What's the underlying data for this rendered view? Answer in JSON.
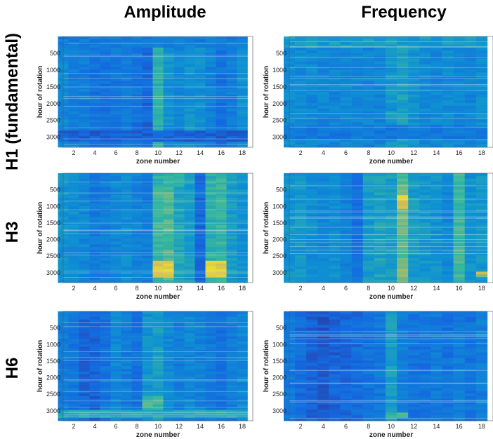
{
  "column_titles": [
    "Amplitude",
    "Frequency"
  ],
  "row_titles": [
    "H1 (fundamental)",
    "H3",
    "H6"
  ],
  "chart_data": [
    {
      "type": "heatmap",
      "id": "h1-amplitude",
      "row": "H1 (fundamental)",
      "column": "Amplitude",
      "xlabel": "zone number",
      "ylabel": "hour of rotation",
      "xlim": [
        1,
        19
      ],
      "ylim": [
        0,
        3300
      ],
      "y_reversed": true,
      "xticks": [
        2,
        4,
        6,
        8,
        10,
        12,
        14,
        16,
        18
      ],
      "yticks": [
        500,
        1000,
        1500,
        2000,
        2500,
        3000
      ],
      "zones": [
        1,
        2,
        3,
        4,
        5,
        6,
        7,
        8,
        9,
        10,
        11,
        12,
        13,
        14,
        15,
        16,
        17,
        18
      ],
      "zone_levels": [
        0.35,
        0.32,
        0.3,
        0.25,
        0.24,
        0.27,
        0.28,
        0.25,
        0.2,
        0.55,
        0.4,
        0.35,
        0.4,
        0.38,
        0.32,
        0.25,
        0.3,
        0.4
      ],
      "bands": [
        {
          "from": 0,
          "to": 300,
          "level": 0.3
        },
        {
          "from": 2800,
          "to": 3100,
          "level": 0.18
        }
      ]
    },
    {
      "type": "heatmap",
      "id": "h1-frequency",
      "row": "H1 (fundamental)",
      "column": "Frequency",
      "xlabel": "zone number",
      "ylabel": "hour of rotation",
      "xlim": [
        1,
        19
      ],
      "ylim": [
        0,
        3300
      ],
      "y_reversed": true,
      "xticks": [
        2,
        4,
        6,
        8,
        10,
        12,
        14,
        16,
        18
      ],
      "yticks": [
        500,
        1000,
        1500,
        2000,
        2500,
        3000
      ],
      "zones": [
        1,
        2,
        3,
        4,
        5,
        6,
        7,
        8,
        9,
        10,
        11,
        12,
        13,
        14,
        15,
        16,
        17,
        18
      ],
      "zone_levels": [
        0.38,
        0.36,
        0.35,
        0.34,
        0.34,
        0.35,
        0.35,
        0.34,
        0.34,
        0.42,
        0.48,
        0.4,
        0.36,
        0.35,
        0.36,
        0.35,
        0.34,
        0.38
      ],
      "bands": [
        {
          "from": 0,
          "to": 300,
          "level": 0.45
        },
        {
          "from": 2600,
          "to": 3000,
          "level": 0.28
        }
      ]
    },
    {
      "type": "heatmap",
      "id": "h3-amplitude",
      "row": "H3",
      "column": "Amplitude",
      "xlabel": "zone number",
      "ylabel": "hour of rotation",
      "xlim": [
        1,
        19
      ],
      "ylim": [
        0,
        3300
      ],
      "y_reversed": true,
      "xticks": [
        2,
        4,
        6,
        8,
        10,
        12,
        14,
        16,
        18
      ],
      "yticks": [
        500,
        1000,
        1500,
        2000,
        2500,
        3000
      ],
      "zones": [
        1,
        2,
        3,
        4,
        5,
        6,
        7,
        8,
        9,
        10,
        11,
        12,
        13,
        14,
        15,
        16,
        17,
        18
      ],
      "zone_levels": [
        0.4,
        0.38,
        0.35,
        0.28,
        0.3,
        0.35,
        0.38,
        0.32,
        0.3,
        0.6,
        0.62,
        0.5,
        0.45,
        0.22,
        0.55,
        0.58,
        0.45,
        0.4
      ],
      "bands": [
        {
          "from": 0,
          "to": 400,
          "level": 0.55,
          "zones": [
            10,
            11,
            12
          ]
        },
        {
          "from": 2600,
          "to": 3100,
          "level": 0.85,
          "zones": [
            10,
            11,
            15,
            16
          ]
        }
      ]
    },
    {
      "type": "heatmap",
      "id": "h3-frequency",
      "row": "H3",
      "column": "Frequency",
      "xlabel": "zone number",
      "ylabel": "hour of rotation",
      "xlim": [
        1,
        19
      ],
      "ylim": [
        0,
        3300
      ],
      "y_reversed": true,
      "xticks": [
        2,
        4,
        6,
        8,
        10,
        12,
        14,
        16,
        18
      ],
      "yticks": [
        500,
        1000,
        1500,
        2000,
        2500,
        3000
      ],
      "zones": [
        1,
        2,
        3,
        4,
        5,
        6,
        7,
        8,
        9,
        10,
        11,
        12,
        13,
        14,
        15,
        16,
        17,
        18
      ],
      "zone_levels": [
        0.4,
        0.42,
        0.38,
        0.35,
        0.38,
        0.32,
        0.25,
        0.45,
        0.48,
        0.45,
        0.65,
        0.45,
        0.42,
        0.4,
        0.35,
        0.6,
        0.4,
        0.42
      ],
      "bands": [
        {
          "from": 600,
          "to": 1000,
          "level": 0.85,
          "zones": [
            11
          ]
        },
        {
          "from": 2600,
          "to": 3100,
          "level": 0.7,
          "zones": [
            11
          ]
        },
        {
          "from": 2900,
          "to": 3100,
          "level": 0.75,
          "zones": [
            18
          ]
        }
      ]
    },
    {
      "type": "heatmap",
      "id": "h6-amplitude",
      "row": "H6",
      "column": "Amplitude",
      "xlabel": "zone number",
      "ylabel": "hour of rotation",
      "xlim": [
        1,
        19
      ],
      "ylim": [
        0,
        3300
      ],
      "y_reversed": true,
      "xticks": [
        2,
        4,
        6,
        8,
        10,
        12,
        14,
        16,
        18
      ],
      "yticks": [
        500,
        1000,
        1500,
        2000,
        2500,
        3000
      ],
      "zones": [
        1,
        2,
        3,
        4,
        5,
        6,
        7,
        8,
        9,
        10,
        11,
        12,
        13,
        14,
        15,
        16,
        17,
        18
      ],
      "zone_levels": [
        0.3,
        0.25,
        0.2,
        0.18,
        0.25,
        0.35,
        0.3,
        0.25,
        0.4,
        0.45,
        0.35,
        0.3,
        0.35,
        0.32,
        0.28,
        0.25,
        0.3,
        0.35
      ],
      "bands": [
        {
          "from": 2500,
          "to": 3000,
          "level": 0.6,
          "zones": [
            9,
            10
          ]
        },
        {
          "from": 2900,
          "to": 3200,
          "level": 0.5
        }
      ]
    },
    {
      "type": "heatmap",
      "id": "h6-frequency",
      "row": "H6",
      "column": "Frequency",
      "xlabel": "zone number",
      "ylabel": "hour of rotation",
      "xlim": [
        1,
        19
      ],
      "ylim": [
        0,
        3300
      ],
      "y_reversed": true,
      "xticks": [
        2,
        4,
        6,
        8,
        10,
        12,
        14,
        16,
        18
      ],
      "yticks": [
        500,
        1000,
        1500,
        2000,
        2500,
        3000
      ],
      "zones": [
        1,
        2,
        3,
        4,
        5,
        6,
        7,
        8,
        9,
        10,
        11,
        12,
        13,
        14,
        15,
        16,
        17,
        18
      ],
      "zone_levels": [
        0.28,
        0.22,
        0.18,
        0.15,
        0.18,
        0.2,
        0.22,
        0.25,
        0.28,
        0.45,
        0.3,
        0.25,
        0.25,
        0.28,
        0.25,
        0.3,
        0.25,
        0.3
      ],
      "bands": [
        {
          "from": 3000,
          "to": 3200,
          "level": 0.6,
          "zones": [
            10,
            11
          ]
        }
      ]
    }
  ]
}
